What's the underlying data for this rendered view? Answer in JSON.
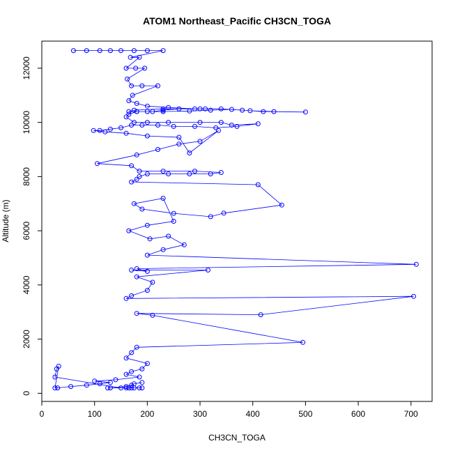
{
  "chart_data": {
    "type": "scatter",
    "title": "ATOM1 Northeast_Pacific CH3CN_TOGA",
    "xlabel": "CH3CN_TOGA",
    "ylabel": "Altitude (m)",
    "xlim": [
      0,
      740
    ],
    "ylim": [
      -300,
      13000
    ],
    "x_ticks": [
      0,
      100,
      200,
      300,
      400,
      500,
      600,
      700
    ],
    "y_ticks": [
      0,
      2000,
      4000,
      6000,
      8000,
      10000,
      12000
    ],
    "grid": false,
    "legend": "none",
    "marker": "open-circle",
    "connected": true,
    "series_color": "#0000FF",
    "series": [
      {
        "x": [
          60,
          85,
          110,
          130,
          150,
          175,
          200,
          230,
          168,
          185,
          160,
          178,
          195,
          162,
          170,
          190,
          220,
          172,
          165,
          180,
          200,
          240,
          290,
          310,
          230,
          175,
          165,
          180,
          200,
          230,
          280,
          320,
          360,
          395,
          440,
          500,
          420,
          380,
          340,
          300,
          260,
          230,
          210,
          180,
          165,
          160,
          175,
          200,
          240,
          300,
          340,
          360,
          410,
          370,
          330,
          290,
          250,
          220,
          190,
          170,
          150,
          130,
          110,
          98,
          120,
          160,
          200,
          260,
          280,
          335,
          300,
          260,
          220,
          180,
          105,
          170,
          185,
          230,
          290,
          340,
          320,
          280,
          240,
          200,
          185,
          180,
          170,
          410,
          455,
          345,
          320,
          250,
          190,
          175,
          230,
          250,
          200,
          165,
          205,
          240,
          270,
          230,
          200,
          710,
          180,
          200,
          170,
          315,
          180,
          210,
          200,
          170,
          160,
          705,
          415,
          180,
          210,
          495,
          180,
          170,
          160,
          200,
          190,
          170,
          160,
          185,
          140,
          100,
          130,
          110,
          85,
          55,
          30,
          25,
          32,
          28,
          25,
          150,
          160,
          170,
          165,
          175,
          190,
          185,
          125,
          130,
          160,
          170,
          175,
          190
        ],
        "y": [
          12650,
          12650,
          12650,
          12650,
          12650,
          12650,
          12650,
          12650,
          12400,
          12400,
          12000,
          12000,
          12000,
          11600,
          11350,
          11350,
          11350,
          11000,
          10800,
          10700,
          10600,
          10550,
          10500,
          10500,
          10500,
          10450,
          10400,
          10400,
          10400,
          10400,
          10420,
          10450,
          10480,
          10430,
          10400,
          10380,
          10400,
          10450,
          10500,
          10500,
          10500,
          10450,
          10400,
          10400,
          10300,
          10200,
          10000,
          10000,
          10000,
          10000,
          10000,
          9900,
          9950,
          9850,
          9800,
          9850,
          9850,
          9900,
          9900,
          9900,
          9800,
          9750,
          9700,
          9700,
          9650,
          9600,
          9500,
          9450,
          8870,
          9700,
          9300,
          9200,
          9000,
          8800,
          8480,
          8400,
          8200,
          8200,
          8200,
          8150,
          8100,
          8100,
          8100,
          8100,
          8000,
          7900,
          7800,
          7700,
          6950,
          6650,
          6520,
          6640,
          6800,
          7000,
          7200,
          6350,
          6200,
          6000,
          5700,
          5800,
          5480,
          5300,
          5100,
          4760,
          4600,
          4500,
          4550,
          4550,
          4300,
          4100,
          3800,
          3600,
          3500,
          3580,
          2900,
          2950,
          2880,
          1880,
          1700,
          1500,
          1300,
          1100,
          900,
          800,
          700,
          600,
          500,
          450,
          400,
          350,
          300,
          250,
          200,
          200,
          1000,
          900,
          600,
          200,
          200,
          200,
          200,
          200,
          200,
          200,
          200,
          200,
          250,
          300,
          350,
          400
        ]
      }
    ]
  }
}
